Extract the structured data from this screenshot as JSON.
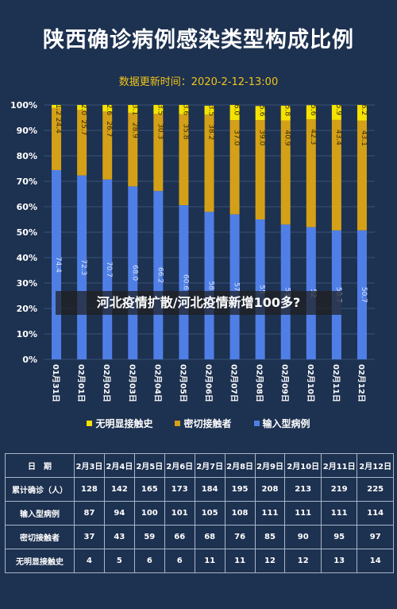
{
  "title": "陕西确诊病例感染类型构成比例",
  "subtitle": "数据更新时间：2020-2-12-13:00",
  "banner": "河北疫情扩散/河北疫情新增100多?",
  "colors": {
    "background": "#1d3150",
    "input": "#4f7fe6",
    "contact": "#d4a017",
    "unknown": "#f5e200",
    "grid": "#3b5478"
  },
  "legend": [
    {
      "label": "无明显接触史",
      "color": "#f5e200"
    },
    {
      "label": "密切接触者",
      "color": "#d4a017"
    },
    {
      "label": "输入型病例",
      "color": "#4f7fe6"
    }
  ],
  "chart_data": {
    "type": "bar",
    "stacked": true,
    "categories": [
      "01月31日",
      "02月01日",
      "02月02日",
      "02月03日",
      "02月04日",
      "02月05日",
      "02月06日",
      "02月07日",
      "02月08日",
      "02月09日",
      "02月10日",
      "02月11日",
      "02月12日"
    ],
    "ylim": [
      0,
      100
    ],
    "yticks": [
      "0%",
      "10%",
      "20%",
      "30%",
      "40%",
      "50%",
      "60%",
      "70%",
      "80%",
      "90%",
      "100%"
    ],
    "series": [
      {
        "name": "输入型病例",
        "color": "#4f7fe6",
        "values": [
          74.4,
          72.3,
          70.7,
          68.0,
          66.2,
          60.6,
          58.0,
          57.0,
          55.0,
          53.0,
          52.0,
          50.7,
          50.7
        ],
        "labels": [
          "74.4",
          "72.3",
          "70.7",
          "68.0",
          "66.2",
          "60.6",
          "58",
          "57",
          "55",
          "53",
          "52",
          "50.7",
          "50.7"
        ]
      },
      {
        "name": "密切接触者",
        "color": "#d4a017",
        "values": [
          24.4,
          25.7,
          26.7,
          28.9,
          30.3,
          35.8,
          38.2,
          37.0,
          39.0,
          40.9,
          42.3,
          43.4,
          43.1
        ],
        "labels": [
          "24.4",
          "25.7",
          "26.7",
          "28.9",
          "30.3",
          "35.8",
          "38.2",
          "37.0",
          "39.0",
          "40.9",
          "42.3",
          "43.4",
          "43.1"
        ]
      },
      {
        "name": "无明显接触史",
        "color": "#f5e200",
        "values": [
          1.2,
          2.0,
          2.6,
          3.1,
          3.5,
          3.6,
          3.5,
          6.0,
          5.6,
          5.8,
          5.6,
          5.9,
          6.2
        ],
        "labels": [
          "1.2",
          "2.0",
          "2.6",
          "3.1",
          "3.5",
          "3.6",
          "3.5",
          "6.0",
          "5.6",
          "5.8",
          "5.6",
          "5.9",
          "6.2"
        ]
      }
    ]
  },
  "table": {
    "header": [
      "日　期",
      "2月3日",
      "2月4日",
      "2月5日",
      "2月6日",
      "2月7日",
      "2月8日",
      "2月9日",
      "2月10日",
      "2月11日",
      "2月12日"
    ],
    "rows": [
      [
        "累计确诊（人）",
        "128",
        "142",
        "165",
        "173",
        "184",
        "195",
        "208",
        "213",
        "219",
        "225"
      ],
      [
        "输入型病例",
        "87",
        "94",
        "100",
        "101",
        "105",
        "108",
        "111",
        "111",
        "111",
        "114"
      ],
      [
        "密切接触者",
        "37",
        "43",
        "59",
        "66",
        "68",
        "76",
        "85",
        "90",
        "95",
        "97"
      ],
      [
        "无明显接触史",
        "4",
        "5",
        "6",
        "6",
        "11",
        "11",
        "12",
        "12",
        "13",
        "14"
      ]
    ]
  }
}
